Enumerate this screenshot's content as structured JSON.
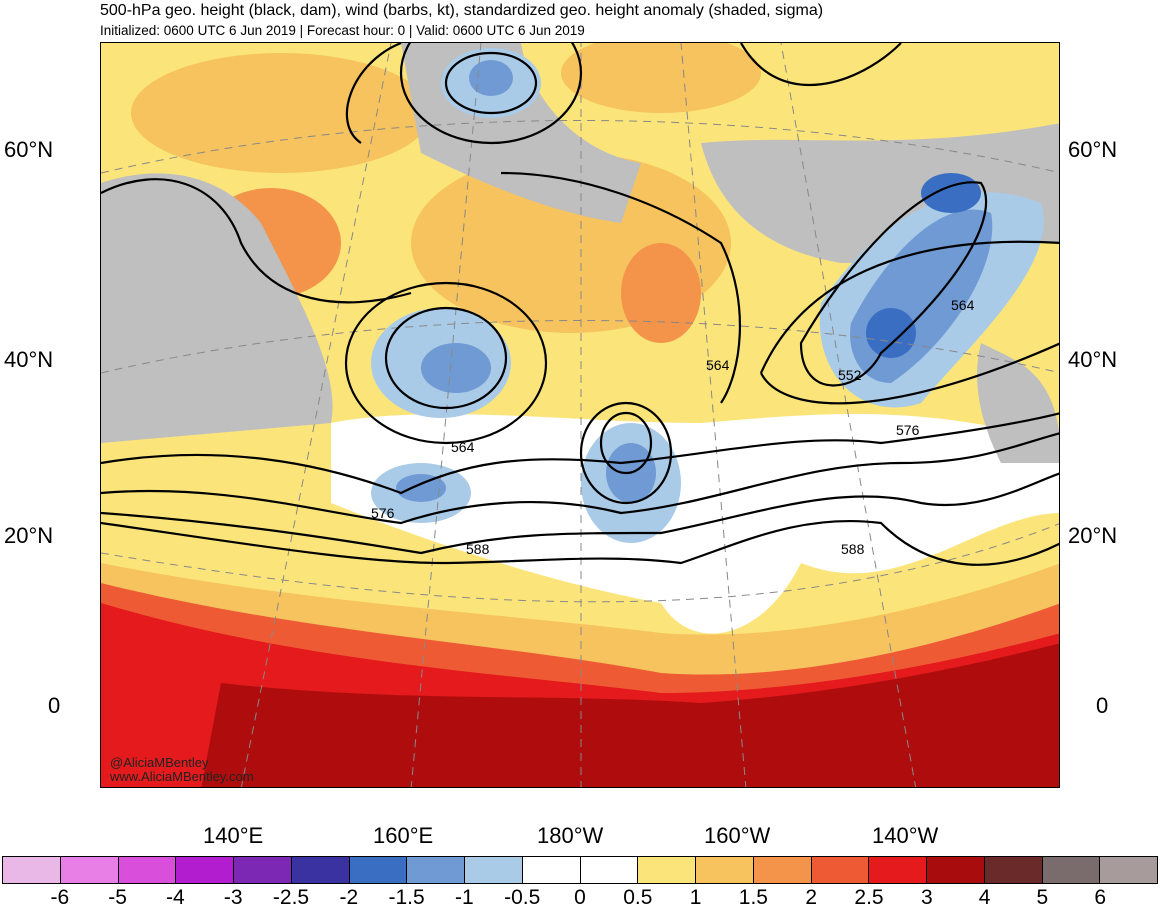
{
  "title": "500-hPa geo. height (black, dam), wind (barbs, kt), standardized geo. height anomaly (shaded, sigma)",
  "subtitle": "Initialized: 0600 UTC 6 Jun 2019 | Forecast hour: 0 | Valid: 0600 UTC 6 Jun 2019",
  "lat_labels": [
    "60°N",
    "40°N",
    "20°N",
    "0"
  ],
  "lon_labels": [
    "140°E",
    "160°E",
    "180°W",
    "160°W",
    "140°W"
  ],
  "contour_labels": [
    "564",
    "564",
    "552",
    "576",
    "564",
    "576",
    "588",
    "588"
  ],
  "credits": [
    "@AliciaMBentley",
    "www.AliciaMBentley.com"
  ],
  "colorbar": {
    "tick_labels": [
      "-6",
      "-5",
      "-4",
      "-3",
      "-2.5",
      "-2",
      "-1.5",
      "-1",
      "-0.5",
      "0",
      "0.5",
      "1",
      "1.5",
      "2",
      "2.5",
      "3",
      "4",
      "5",
      "6"
    ],
    "colors": [
      "#e9b8e6",
      "#e77fe6",
      "#d94fdb",
      "#b21dd0",
      "#7c28b4",
      "#3a32a0",
      "#3a6ec2",
      "#6f9ad4",
      "#a9cbe8",
      "#ffffff",
      "#ffffff",
      "#fbe57a",
      "#f6c35e",
      "#f3944a",
      "#ee5a34",
      "#e41a1c",
      "#a80c0c",
      "#6b2a2a",
      "#7a6c6c",
      "#a79c9b"
    ]
  },
  "colors": {
    "land": "#bfbfbf",
    "coast": "#555555",
    "contour": "#000000",
    "grid": "#888888"
  }
}
